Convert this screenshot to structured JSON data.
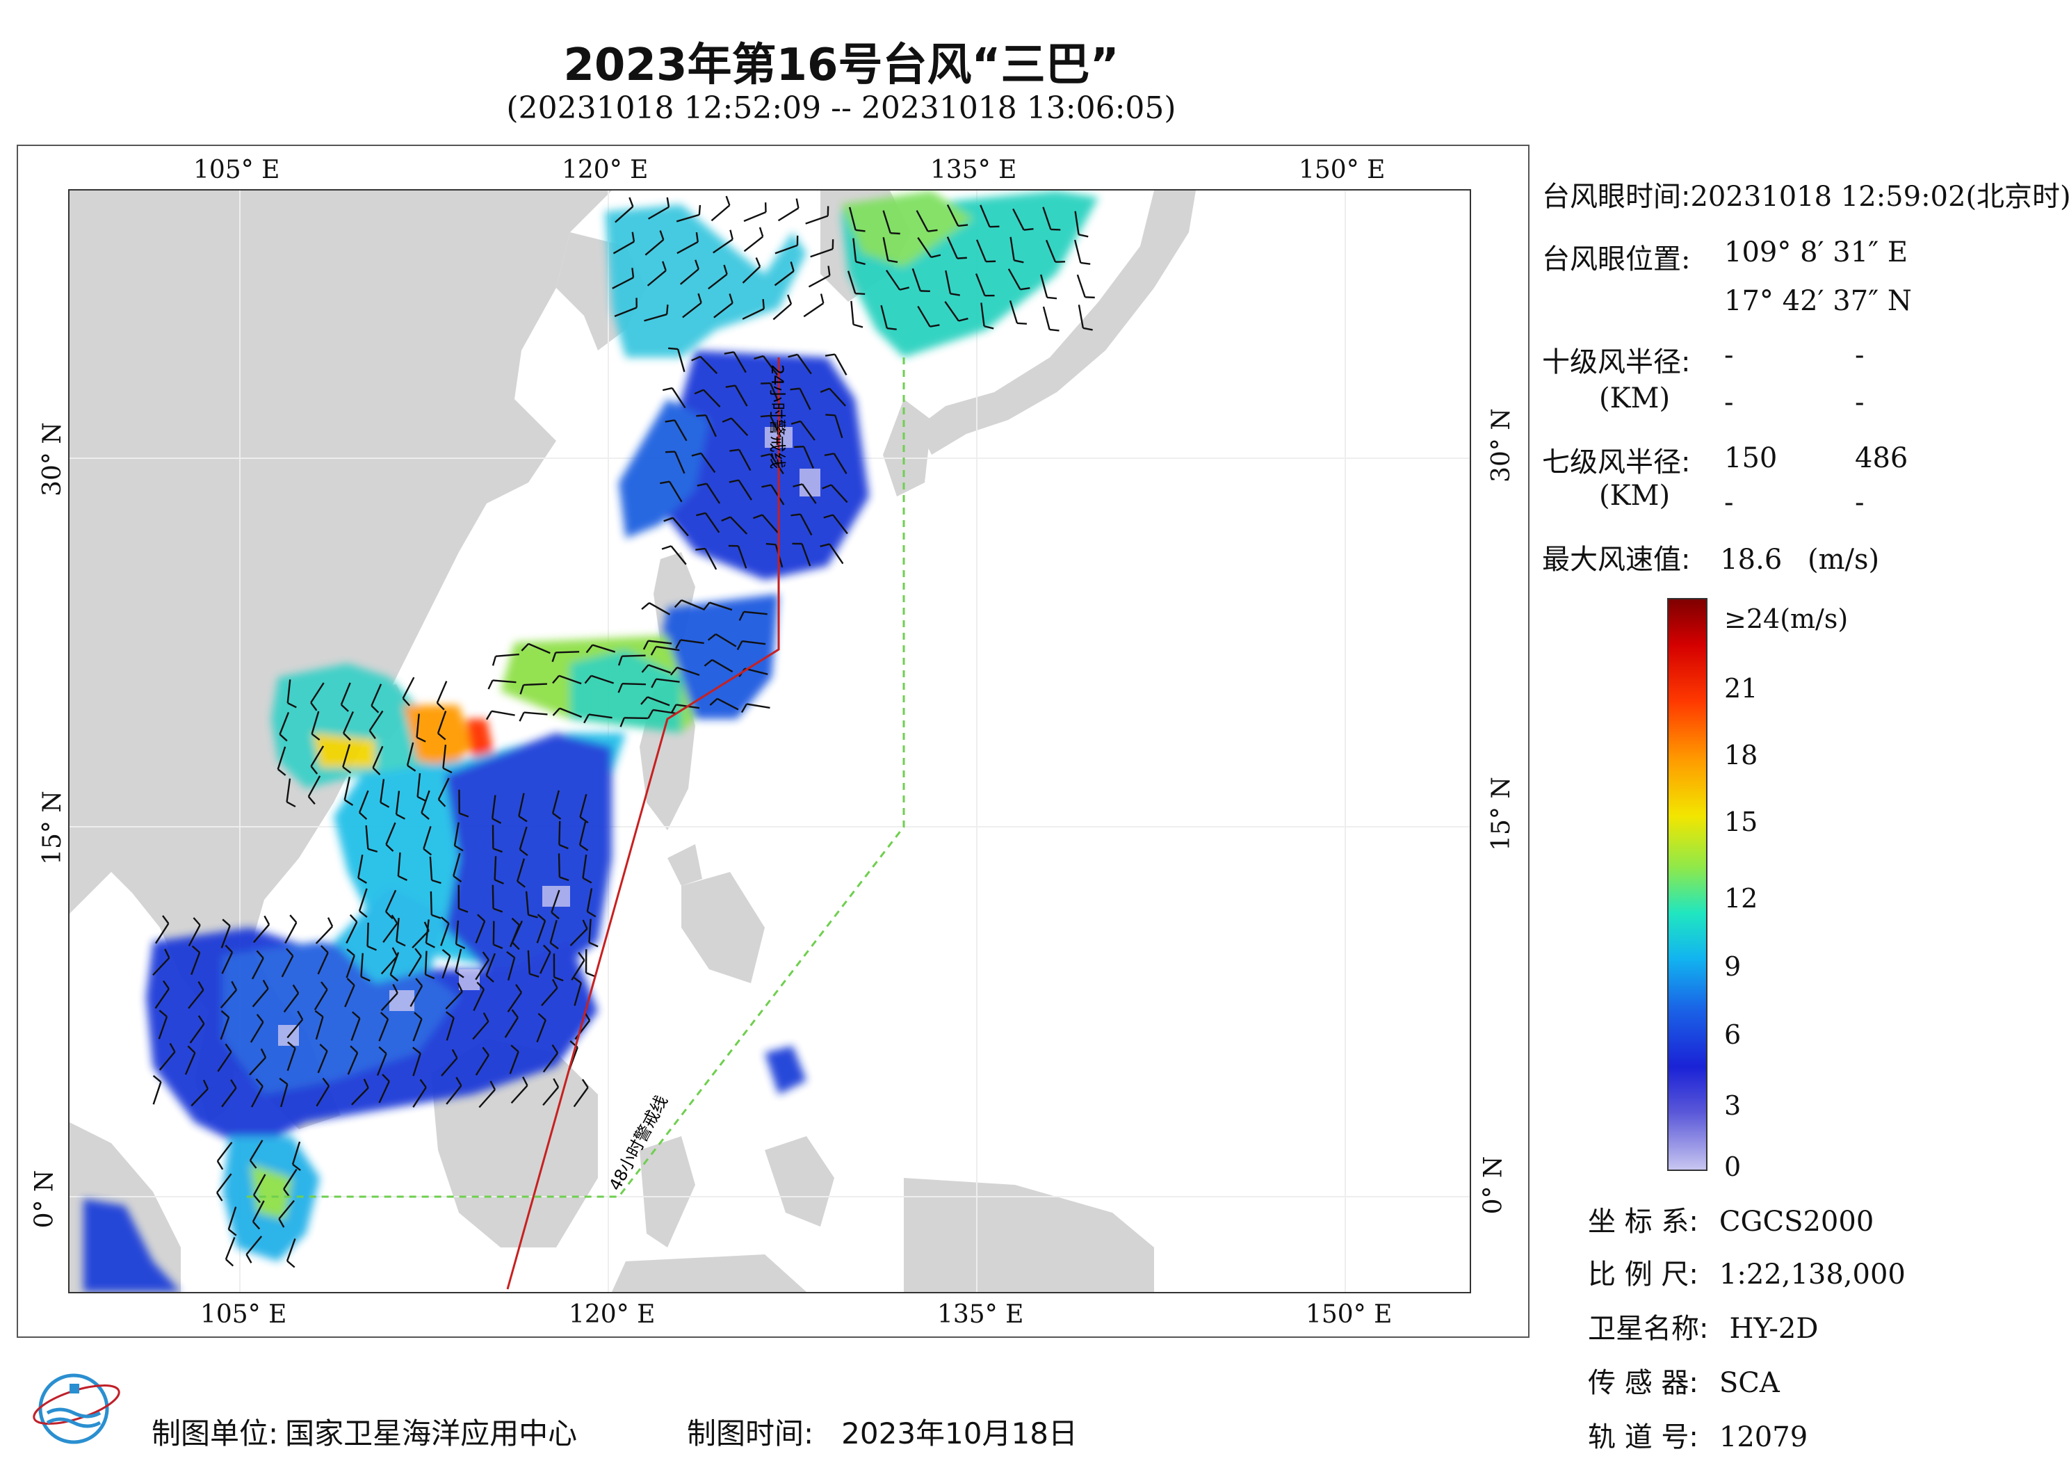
{
  "header": {
    "title": "2023年第16号台风“三巴”",
    "subtitle": "(20231018 12:52:09 -- 20231018 13:06:05)"
  },
  "axes": {
    "top": [
      "105° E",
      "120° E",
      "135° E",
      "150° E"
    ],
    "bottom": [
      "105° E",
      "120° E",
      "135° E",
      "150° E"
    ],
    "left": [
      "30° N",
      "15° N",
      "0° N"
    ],
    "right": [
      "30° N",
      "15° N",
      "0° N"
    ]
  },
  "map": {
    "line_24h_label": "24小时警戒线",
    "line_48h_label": "48小时警戒线"
  },
  "info": {
    "eye_time_label": "台风眼时间:",
    "eye_time_value": "20231018 12:59:02(北京时)",
    "eye_pos_label": "台风眼位置:",
    "eye_lon": "109° 8′ 31″ E",
    "eye_lat": "17° 42′ 37″ N",
    "r10_label": "十级风半径:",
    "r10_unit": "(KM)",
    "r10_a1": "-",
    "r10_a2": "-",
    "r10_b1": "-",
    "r10_b2": "-",
    "r7_label": "七级风半径:",
    "r7_unit": "(KM)",
    "r7_a1": "150",
    "r7_a2": "486",
    "r7_b1": "-",
    "r7_b2": "-",
    "max_wind_label": "最大风速值:",
    "max_wind_value": "18.6",
    "max_wind_unit": "(m/s)"
  },
  "colorbar": {
    "ticks": [
      "≥24(m/s)",
      "21",
      "18",
      "15",
      "12",
      "9",
      "6",
      "3",
      "0"
    ],
    "colors": [
      "#7f0000",
      "#d40000",
      "#ff9a00",
      "#f2e600",
      "#20e6c0",
      "#1a62e6",
      "#1a22d6",
      "#c8c6f0"
    ]
  },
  "meta": {
    "crs_label": "坐 标 系:",
    "crs_value": "CGCS2000",
    "scale_label": "比 例 尺:",
    "scale_value": "1:22,138,000",
    "sat_label": "卫星名称:",
    "sat_value": "HY-2D",
    "sensor_label": "传 感 器:",
    "sensor_value": "SCA",
    "orbit_label": "轨 道 号:",
    "orbit_value": "12079"
  },
  "footer": {
    "producer_label": "制图单位:",
    "producer_value": "国家卫星海洋应用中心",
    "date_label": "制图时间:",
    "date_value": "2023年10月18日"
  }
}
